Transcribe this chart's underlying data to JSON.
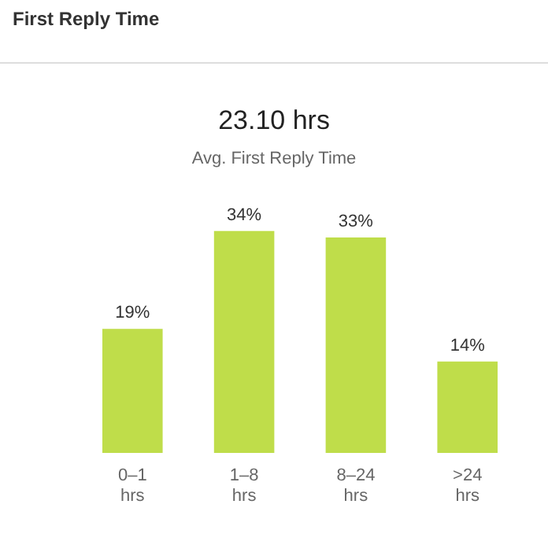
{
  "chart_data": {
    "type": "bar",
    "title": "First Reply Time",
    "annotations": [
      "23.10 hrs",
      "Avg. First Reply Time"
    ],
    "categories": [
      "0–1 hrs",
      "1–8 hrs",
      "8–24 hrs",
      ">24 hrs"
    ],
    "values": [
      19,
      34,
      33,
      14
    ],
    "value_labels": [
      "19%",
      "34%",
      "33%",
      "14%"
    ],
    "color": "#bfdd4a",
    "grid": false
  }
}
